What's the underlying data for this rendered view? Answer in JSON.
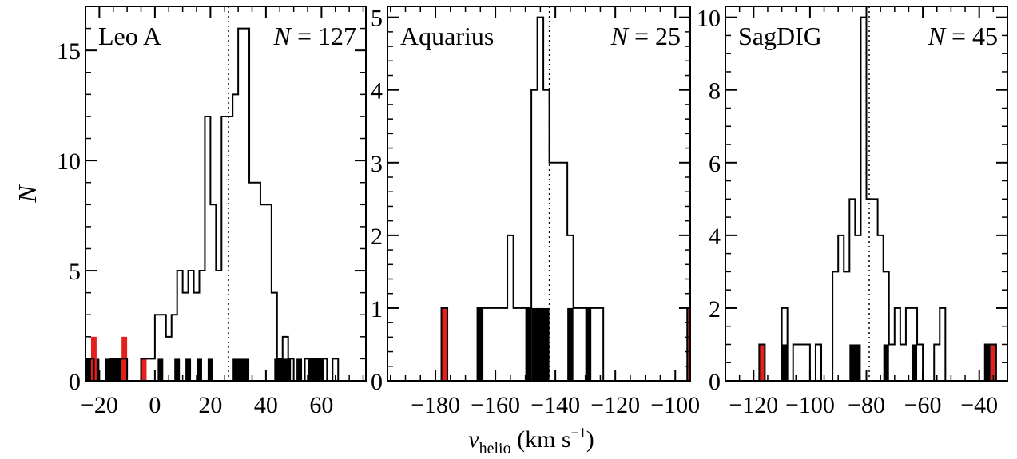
{
  "figure": {
    "shared_ylabel": "N",
    "shared_xlabel_main": "v",
    "shared_xlabel_sub": "helio",
    "shared_xlabel_unit_open": " (km s",
    "shared_xlabel_unit_sup": "−1",
    "shared_xlabel_unit_close": ")"
  },
  "colors": {
    "outline": "#000000",
    "member_fill": "#000000",
    "nonmember_fill": "#e4201c",
    "mean_line": "#000000",
    "background": "#ffffff"
  },
  "chart_data": [
    {
      "type": "histogram",
      "title": "Leo A",
      "count_label": "N = 127",
      "count_value": 127,
      "mean_velocity_line": 26.5,
      "xlim": [
        -25,
        76
      ],
      "ylim": [
        0,
        17
      ],
      "xticks": [
        -20,
        0,
        20,
        40,
        60
      ],
      "xtick_labels": [
        "−20",
        "0",
        "20",
        "40",
        "60"
      ],
      "yticks": [
        0,
        5,
        10,
        15
      ],
      "ytick_labels": [
        "0",
        "5",
        "10",
        "15"
      ],
      "total_histogram": [
        {
          "x0": -25,
          "x1": -22,
          "count": 1
        },
        {
          "x0": -22,
          "x1": -16,
          "count": 0
        },
        {
          "x0": -16,
          "x1": -10,
          "count": 1
        },
        {
          "x0": -10,
          "x1": -5,
          "count": 0
        },
        {
          "x0": -5,
          "x1": -2,
          "count": 1
        },
        {
          "x0": -2,
          "x1": 0,
          "count": 1
        },
        {
          "x0": 0,
          "x1": 4,
          "count": 3
        },
        {
          "x0": 4,
          "x1": 6,
          "count": 2
        },
        {
          "x0": 6,
          "x1": 8,
          "count": 3
        },
        {
          "x0": 8,
          "x1": 10,
          "count": 5
        },
        {
          "x0": 10,
          "x1": 12,
          "count": 4
        },
        {
          "x0": 12,
          "x1": 14,
          "count": 5
        },
        {
          "x0": 14,
          "x1": 16,
          "count": 4
        },
        {
          "x0": 16,
          "x1": 18,
          "count": 5
        },
        {
          "x0": 18,
          "x1": 20,
          "count": 12
        },
        {
          "x0": 20,
          "x1": 22,
          "count": 8
        },
        {
          "x0": 22,
          "x1": 24,
          "count": 5
        },
        {
          "x0": 24,
          "x1": 26,
          "count": 12
        },
        {
          "x0": 26,
          "x1": 28,
          "count": 12
        },
        {
          "x0": 28,
          "x1": 30,
          "count": 13
        },
        {
          "x0": 30,
          "x1": 34,
          "count": 16
        },
        {
          "x0": 34,
          "x1": 38,
          "count": 9
        },
        {
          "x0": 38,
          "x1": 42,
          "count": 8
        },
        {
          "x0": 42,
          "x1": 44,
          "count": 4
        },
        {
          "x0": 44,
          "x1": 46,
          "count": 1
        },
        {
          "x0": 46,
          "x1": 48,
          "count": 2
        },
        {
          "x0": 48,
          "x1": 50,
          "count": 1
        },
        {
          "x0": 50,
          "x1": 54,
          "count": 0
        },
        {
          "x0": 54,
          "x1": 62,
          "count": 1
        },
        {
          "x0": 62,
          "x1": 64,
          "count": 0
        },
        {
          "x0": 64,
          "x1": 66,
          "count": 1
        }
      ],
      "black_histogram": [
        {
          "x0": -25,
          "x1": -22,
          "count": 1
        },
        {
          "x0": -22,
          "x1": -20,
          "count": 1
        },
        {
          "x0": -18,
          "x1": -12,
          "count": 1
        },
        {
          "x0": -12,
          "x1": -10,
          "count": 1
        },
        {
          "x0": 1,
          "x1": 3,
          "count": 1
        },
        {
          "x0": 7,
          "x1": 9,
          "count": 1
        },
        {
          "x0": 11,
          "x1": 13,
          "count": 1
        },
        {
          "x0": 15,
          "x1": 17,
          "count": 1
        },
        {
          "x0": 19,
          "x1": 21,
          "count": 1
        },
        {
          "x0": 28,
          "x1": 34,
          "count": 1
        },
        {
          "x0": 43,
          "x1": 49,
          "count": 1
        },
        {
          "x0": 51,
          "x1": 53,
          "count": 1
        },
        {
          "x0": 55,
          "x1": 61,
          "count": 1
        }
      ],
      "red_histogram": [
        {
          "x0": -23,
          "x1": -21,
          "count": 2
        },
        {
          "x0": -12,
          "x1": -10,
          "count": 2
        },
        {
          "x0": -5,
          "x1": -3,
          "count": 1
        }
      ]
    },
    {
      "type": "histogram",
      "title": "Aquarius",
      "count_label": "N = 25",
      "count_value": 25,
      "mean_velocity_line": -142,
      "xlim": [
        -196,
        -95
      ],
      "ylim": [
        0,
        5.15
      ],
      "xticks": [
        -180,
        -160,
        -140,
        -120,
        -100
      ],
      "xtick_labels": [
        "−180",
        "−160",
        "−140",
        "−120",
        "−100"
      ],
      "yticks": [
        0,
        1,
        2,
        3,
        4,
        5
      ],
      "ytick_labels": [
        "0",
        "1",
        "2",
        "3",
        "4",
        "5"
      ],
      "total_histogram": [
        {
          "x0": -178,
          "x1": -176,
          "count": 1
        },
        {
          "x0": -166,
          "x1": -164,
          "count": 1
        },
        {
          "x0": -164,
          "x1": -156,
          "count": 1
        },
        {
          "x0": -156,
          "x1": -154,
          "count": 2
        },
        {
          "x0": -154,
          "x1": -150,
          "count": 1
        },
        {
          "x0": -150,
          "x1": -148,
          "count": 1
        },
        {
          "x0": -148,
          "x1": -146,
          "count": 4
        },
        {
          "x0": -146,
          "x1": -144,
          "count": 5
        },
        {
          "x0": -144,
          "x1": -142,
          "count": 4
        },
        {
          "x0": -142,
          "x1": -136,
          "count": 3
        },
        {
          "x0": -136,
          "x1": -134,
          "count": 2
        },
        {
          "x0": -134,
          "x1": -124,
          "count": 1
        },
        {
          "x0": -96,
          "x1": -95,
          "count": 1
        }
      ],
      "black_histogram": [
        {
          "x0": -166,
          "x1": -164,
          "count": 1
        },
        {
          "x0": -150,
          "x1": -148,
          "count": 1
        },
        {
          "x0": -148,
          "x1": -142,
          "count": 1
        },
        {
          "x0": -136,
          "x1": -134,
          "count": 1
        },
        {
          "x0": -130,
          "x1": -128,
          "count": 1
        }
      ],
      "red_histogram": [
        {
          "x0": -178,
          "x1": -176,
          "count": 1
        },
        {
          "x0": -96,
          "x1": -95,
          "count": 1
        }
      ]
    },
    {
      "type": "histogram",
      "title": "SagDIG",
      "count_label": "N = 45",
      "count_value": 45,
      "mean_velocity_line": -79,
      "xlim": [
        -130,
        -30
      ],
      "ylim": [
        0,
        10.3
      ],
      "xticks": [
        -120,
        -100,
        -80,
        -60,
        -40
      ],
      "xtick_labels": [
        "−120",
        "−100",
        "−80",
        "−60",
        "−40"
      ],
      "yticks": [
        0,
        2,
        4,
        6,
        8,
        10
      ],
      "ytick_labels": [
        "0",
        "2",
        "4",
        "6",
        "8",
        "10"
      ],
      "total_histogram": [
        {
          "x0": -118,
          "x1": -116,
          "count": 1
        },
        {
          "x0": -110,
          "x1": -108,
          "count": 2
        },
        {
          "x0": -108,
          "x1": -106,
          "count": 0
        },
        {
          "x0": -106,
          "x1": -100,
          "count": 1
        },
        {
          "x0": -98,
          "x1": -96,
          "count": 1
        },
        {
          "x0": -92,
          "x1": -90,
          "count": 3
        },
        {
          "x0": -90,
          "x1": -88,
          "count": 4
        },
        {
          "x0": -88,
          "x1": -86,
          "count": 3
        },
        {
          "x0": -86,
          "x1": -84,
          "count": 5
        },
        {
          "x0": -84,
          "x1": -82,
          "count": 4
        },
        {
          "x0": -82,
          "x1": -80,
          "count": 10
        },
        {
          "x0": -80,
          "x1": -76,
          "count": 5
        },
        {
          "x0": -76,
          "x1": -74,
          "count": 4
        },
        {
          "x0": -74,
          "x1": -72,
          "count": 3
        },
        {
          "x0": -72,
          "x1": -70,
          "count": 1
        },
        {
          "x0": -70,
          "x1": -68,
          "count": 2
        },
        {
          "x0": -68,
          "x1": -66,
          "count": 1
        },
        {
          "x0": -66,
          "x1": -62,
          "count": 2
        },
        {
          "x0": -62,
          "x1": -60,
          "count": 1
        },
        {
          "x0": -60,
          "x1": -56,
          "count": 0
        },
        {
          "x0": -56,
          "x1": -54,
          "count": 1
        },
        {
          "x0": -54,
          "x1": -52,
          "count": 2
        },
        {
          "x0": -52,
          "x1": -50,
          "count": 0
        },
        {
          "x0": -38,
          "x1": -34,
          "count": 1
        }
      ],
      "black_histogram": [
        {
          "x0": -110,
          "x1": -108,
          "count": 1
        },
        {
          "x0": -86,
          "x1": -82,
          "count": 1
        },
        {
          "x0": -74,
          "x1": -72,
          "count": 1
        },
        {
          "x0": -64,
          "x1": -62,
          "count": 1
        },
        {
          "x0": -38,
          "x1": -36,
          "count": 1
        }
      ],
      "red_histogram": [
        {
          "x0": -118,
          "x1": -116,
          "count": 1
        },
        {
          "x0": -36,
          "x1": -34,
          "count": 1
        }
      ]
    }
  ]
}
